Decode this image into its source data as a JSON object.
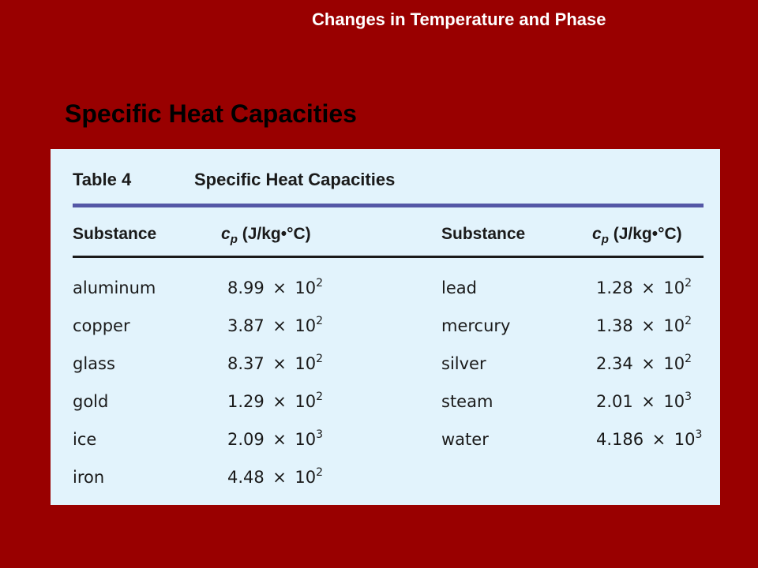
{
  "slide": {
    "header": "Changes in Temperature and Phase",
    "title": "Specific Heat Capacities"
  },
  "table": {
    "caption_number": "Table 4",
    "caption_title": "Specific Heat Capacities",
    "columns": {
      "substance": "Substance",
      "cp_symbol": "c",
      "cp_subscript": "p",
      "cp_units": "(J/kg•°C)"
    },
    "times_symbol": "×",
    "base": "10",
    "left_rows": [
      {
        "substance": "aluminum",
        "mantissa": "8.99",
        "exponent": "2"
      },
      {
        "substance": "copper",
        "mantissa": "3.87",
        "exponent": "2"
      },
      {
        "substance": "glass",
        "mantissa": "8.37",
        "exponent": "2"
      },
      {
        "substance": "gold",
        "mantissa": "1.29",
        "exponent": "2"
      },
      {
        "substance": "ice",
        "mantissa": "2.09",
        "exponent": "3"
      },
      {
        "substance": "iron",
        "mantissa": "4.48",
        "exponent": "2"
      }
    ],
    "right_rows": [
      {
        "substance": "lead",
        "mantissa": "1.28",
        "exponent": "2"
      },
      {
        "substance": "mercury",
        "mantissa": "1.38",
        "exponent": "2"
      },
      {
        "substance": "silver",
        "mantissa": "2.34",
        "exponent": "2"
      },
      {
        "substance": "steam",
        "mantissa": "2.01",
        "exponent": "3"
      },
      {
        "substance": "water",
        "mantissa": "4.186",
        "exponent": "3"
      }
    ]
  }
}
